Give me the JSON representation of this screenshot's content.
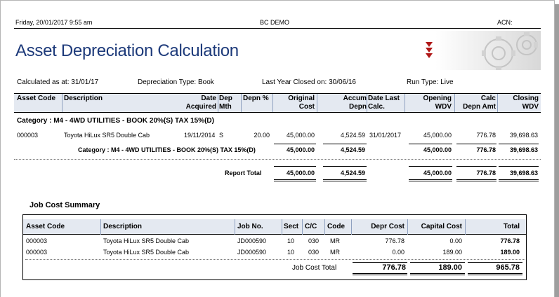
{
  "header": {
    "datetime": "Friday, 20/01/2017  9:55 am",
    "company": "BC DEMO",
    "acn": "ACN:"
  },
  "title": "Asset Depreciation Calculation",
  "params": {
    "calculated": "Calculated as at: 31/01/17",
    "depn_type": "Depreciation Type: Book",
    "last_year": "Last Year Closed on: 30/06/16",
    "run_type": "Run Type: Live"
  },
  "columns": {
    "asset_code": "Asset Code",
    "description": "Description",
    "date_acq_1": "Date",
    "date_acq_2": "Acquired",
    "dep_mth_1": "Dep",
    "dep_mth_2": "Mth",
    "depn_pct": "Depn %",
    "orig_cost_1": "Original",
    "orig_cost_2": "Cost",
    "accum_1": "Accum",
    "accum_2": "Depn",
    "date_last_1": "Date Last",
    "date_last_2": "Calc.",
    "opening_1": "Opening",
    "opening_2": "WDV",
    "calc_1": "Calc",
    "calc_2": "Depn Amt",
    "closing_1": "Closing",
    "closing_2": "WDV"
  },
  "category_heading": "Category  : M4 - 4WD UTILITIES - BOOK 20%(S) TAX 15%(D)",
  "asset_row": {
    "code": "000003",
    "description": "Toyota HiLux SR5 Double Cab",
    "date_acquired": "19/11/2014",
    "dep_mth": "S",
    "depn_pct": "20.00",
    "original_cost": "45,000.00",
    "accum_depn": "4,524.59",
    "date_last_calc": "31/01/2017",
    "opening_wdv": "45,000.00",
    "calc_depn_amt": "776.78",
    "closing_wdv": "39,698.63"
  },
  "category_total": {
    "label": "Category  : M4 - 4WD UTILITIES - BOOK 20%(S) TAX 15%(D)",
    "original_cost": "45,000.00",
    "accum_depn": "4,524.59",
    "opening_wdv": "45,000.00",
    "calc_depn_amt": "776.78",
    "closing_wdv": "39,698.63"
  },
  "report_total": {
    "label": "Report Total",
    "original_cost": "45,000.00",
    "accum_depn": "4,524.59",
    "opening_wdv": "45,000.00",
    "calc_depn_amt": "776.78",
    "closing_wdv": "39,698.63"
  },
  "job_cost": {
    "title": "Job Cost Summary",
    "columns": {
      "asset_code": "Asset Code",
      "description": "Description",
      "job_no": "Job No.",
      "sect": "Sect",
      "cc": "C/C",
      "code": "Code",
      "depr_cost": "Depr Cost",
      "capital_cost": "Capital Cost",
      "total": "Total"
    },
    "rows": [
      {
        "asset_code": "000003",
        "description": "Toyota HiLux SR5 Double Cab",
        "job_no": "JD000590",
        "sect": "10",
        "cc": "030",
        "code": "MR",
        "depr_cost": "776.78",
        "capital_cost": "0.00",
        "total": "776.78"
      },
      {
        "asset_code": "000003",
        "description": "Toyota HiLux SR5 Double Cab",
        "job_no": "JD000590",
        "sect": "10",
        "cc": "030",
        "code": "MR",
        "depr_cost": "0.00",
        "capital_cost": "189.00",
        "total": "189.00"
      }
    ],
    "total": {
      "label": "Job Cost Total",
      "depr_cost": "776.78",
      "capital_cost": "189.00",
      "total": "965.78"
    }
  },
  "colors": {
    "title": "#1d3a7a",
    "header_band": "#e4e9f1",
    "logo_red": "#b01818"
  },
  "icons": {
    "logo": "gear-logo-icon"
  }
}
